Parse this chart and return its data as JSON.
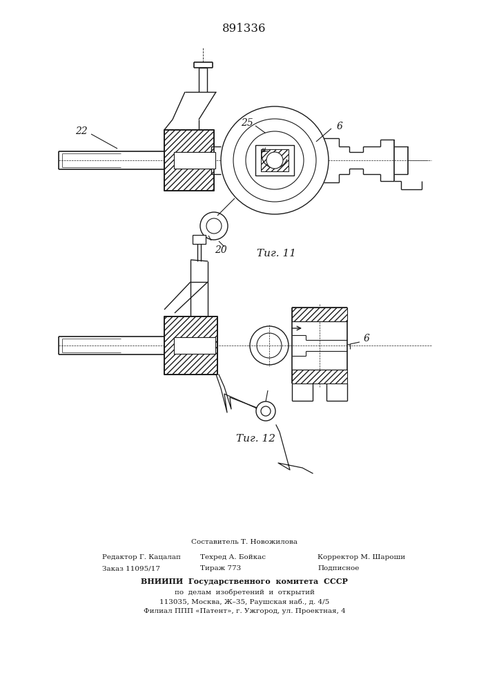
{
  "title_number": "891336",
  "fig11_label": "Τиг. 11",
  "fig12_label": "Τиг. 12",
  "label_22": "22",
  "label_25": "25",
  "label_6_top": "6",
  "label_20": "20",
  "label_6_bot": "6",
  "footer_line1": "Составитель Т. Новожилова",
  "footer_line2_left": "Редактор Г. Кацалап",
  "footer_line2_mid": "Техред А. Бойкас",
  "footer_line2_right": "Корректор М. Шароши",
  "footer_line3_left": "Заказ 11095/17",
  "footer_line3_mid": "Тираж 773",
  "footer_line3_right": "Подписное",
  "footer_vnipi": "ВНИИПИ  Государственного  комитета  СССР",
  "footer_dela": "по  делам  изобретений  и  открытий",
  "footer_addr": "113035, Москва, Ж–35, Раушская наб., д. 4/5",
  "footer_filial": "Филиал ППП «Патент», г. Ужгород, ул. Проектная, 4",
  "bg_color": "#ffffff",
  "line_color": "#1a1a1a"
}
